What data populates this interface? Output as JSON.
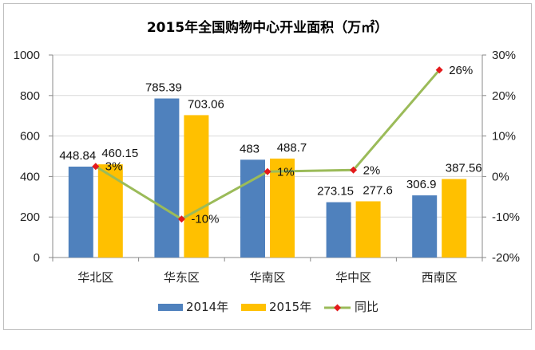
{
  "chart_data": {
    "type": "bar",
    "title": "2015年全国购物中心开业面积（万㎡）",
    "categories": [
      "华北区",
      "华东区",
      "华南区",
      "华中区",
      "西南区"
    ],
    "series": [
      {
        "name": "2014年",
        "type": "bar",
        "axis": "left",
        "color": "#4F81BD",
        "values": [
          448.84,
          785.39,
          483,
          273.15,
          306.9
        ],
        "labels": [
          "448.84",
          "785.39",
          "483",
          "273.15",
          "306.9"
        ]
      },
      {
        "name": "2015年",
        "type": "bar",
        "axis": "left",
        "color": "#FFC000",
        "values": [
          460.15,
          703.06,
          488.7,
          277.6,
          387.56
        ],
        "labels": [
          "460.15",
          "703.06",
          "488.7",
          "277.6",
          "387.56"
        ]
      },
      {
        "name": "同比",
        "type": "line",
        "axis": "right",
        "color": "#9BBB59",
        "marker_color": "#E41A1C",
        "values": [
          2.5,
          -10.5,
          1.2,
          1.6,
          26.3
        ],
        "labels": [
          "3%",
          "-10%",
          "1%",
          "2%",
          "26%"
        ]
      }
    ],
    "yaxis_left": {
      "min": 0,
      "max": 1000,
      "step": 200,
      "ticks": [
        "0",
        "200",
        "400",
        "600",
        "800",
        "1000"
      ]
    },
    "yaxis_right": {
      "min": -20,
      "max": 30,
      "step": 10,
      "ticks": [
        "-20%",
        "-10%",
        "0%",
        "10%",
        "20%",
        "30%"
      ]
    },
    "grid": true,
    "legend_position": "bottom"
  }
}
